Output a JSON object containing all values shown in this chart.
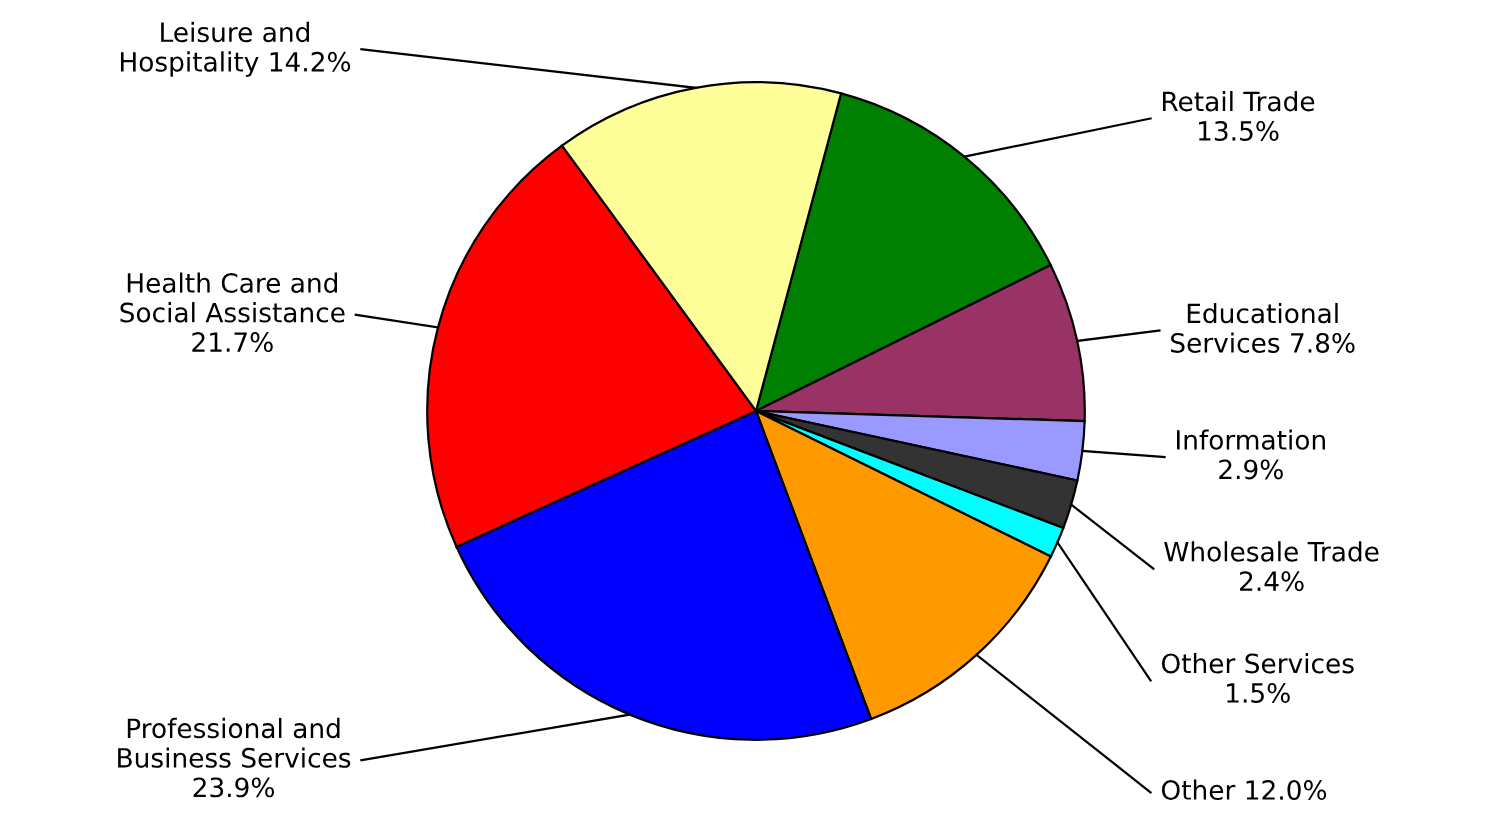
{
  "chart_data": {
    "type": "pie",
    "categories": [
      "Retail Trade\n",
      "Educational\nServices",
      "Information\n",
      "Wholesale Trade\n",
      "Other Services\n",
      "Other",
      "Professional and\nBusiness Services\n",
      "Health Care and\nSocial Assistance\n",
      "Leisure and\nHospitality"
    ],
    "values": [
      13.5,
      7.8,
      2.9,
      2.4,
      1.5,
      12.0,
      23.9,
      21.7,
      14.2
    ],
    "value_labels": [
      "13.5%",
      "7.8%",
      "2.9%",
      "2.4%",
      "1.5%",
      "12.0%",
      "23.9%",
      "21.7%",
      "14.2%"
    ],
    "colors": [
      "#008000",
      "#993366",
      "#9999ff",
      "#333333",
      "#00ffff",
      "#ff9900",
      "#0000ff",
      "#ff0000",
      "#ffff99"
    ],
    "legend": false
  }
}
